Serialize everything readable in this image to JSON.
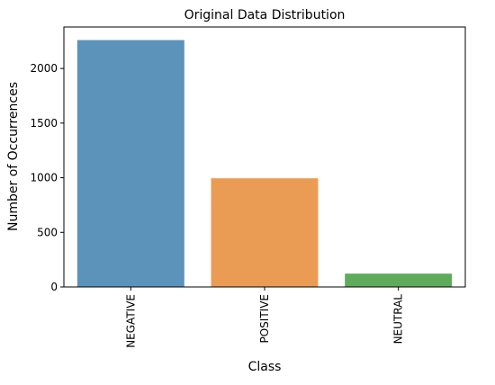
{
  "chart_data": {
    "type": "bar",
    "title": "Original Data Distribution",
    "xlabel": "Class",
    "ylabel": "Number of Occurrences",
    "categories": [
      "NEGATIVE",
      "POSITIVE",
      "NEUTRAL"
    ],
    "values": [
      2260,
      995,
      122
    ],
    "colors": [
      "#5b93bb",
      "#ea9c55",
      "#5eab5c"
    ],
    "ylim": [
      0,
      2380
    ],
    "yticks": [
      0,
      500,
      1000,
      1500,
      2000
    ],
    "grid": false,
    "legend": "none"
  }
}
